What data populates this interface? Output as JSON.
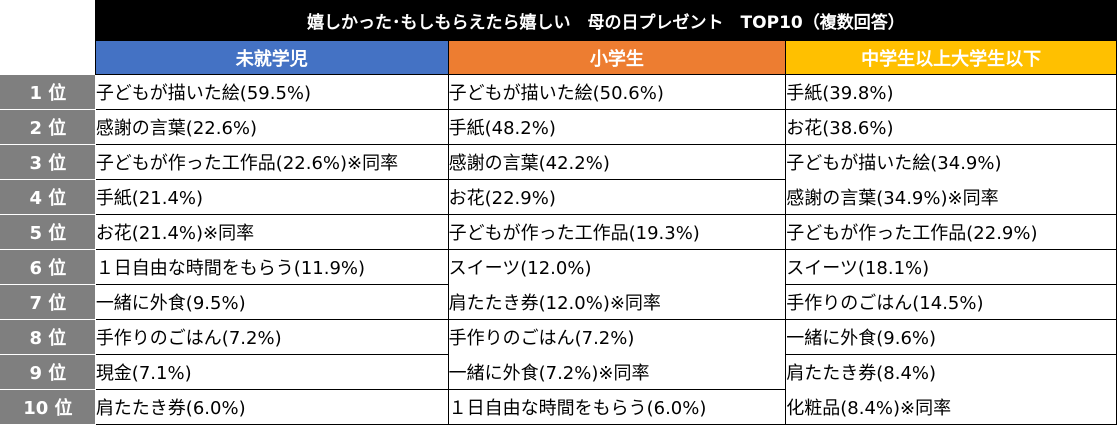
{
  "chart_data": {
    "type": "table",
    "title": "嬉しかった･もしもらえたら嬉しい　母の日プレゼント　TOP10（複数回答）",
    "columns": [
      "未就学児",
      "小学生",
      "中学生以上大学生以下"
    ],
    "ranks": [
      "1 位",
      "2 位",
      "3 位",
      "4 位",
      "5 位",
      "6 位",
      "7 位",
      "8 位",
      "9 位",
      "10 位"
    ],
    "rows": [
      [
        "子どもが描いた絵(59.5%)",
        "子どもが描いた絵(50.6%)",
        "手紙(39.8%)"
      ],
      [
        "感謝の言葉(22.6%)",
        "手紙(48.2%)",
        "お花(38.6%)"
      ],
      [
        "子どもが作った工作品(22.6%)※同率",
        "感謝の言葉(42.2%)",
        "子どもが描いた絵(34.9%)"
      ],
      [
        "手紙(21.4%)",
        "お花(22.9%)",
        "感謝の言葉(34.9%)※同率"
      ],
      [
        "お花(21.4%)※同率",
        "子どもが作った工作品(19.3%)",
        "子どもが作った工作品(22.9%)"
      ],
      [
        "１日自由な時間をもらう(11.9%)",
        "スイーツ(12.0%)",
        "スイーツ(18.1%)"
      ],
      [
        "一緒に外食(9.5%)",
        "肩たたき券(12.0%)※同率",
        "手作りのごはん(14.5%)"
      ],
      [
        "手作りのごはん(7.2%)",
        "手作りのごはん(7.2%)",
        "一緒に外食(9.6%)"
      ],
      [
        "現金(7.1%)",
        "一緒に外食(7.2%)※同率",
        "肩たたき券(8.4%)"
      ],
      [
        "肩たたき券(6.0%)",
        "１日自由な時間をもらう(6.0%)",
        "化粧品(8.4%)※同率"
      ]
    ],
    "colors": {
      "title_bg": "#000000",
      "col_bg": [
        "#4472c4",
        "#ed7d31",
        "#ffc000"
      ],
      "rank_bg": "#7f7f7f"
    }
  }
}
